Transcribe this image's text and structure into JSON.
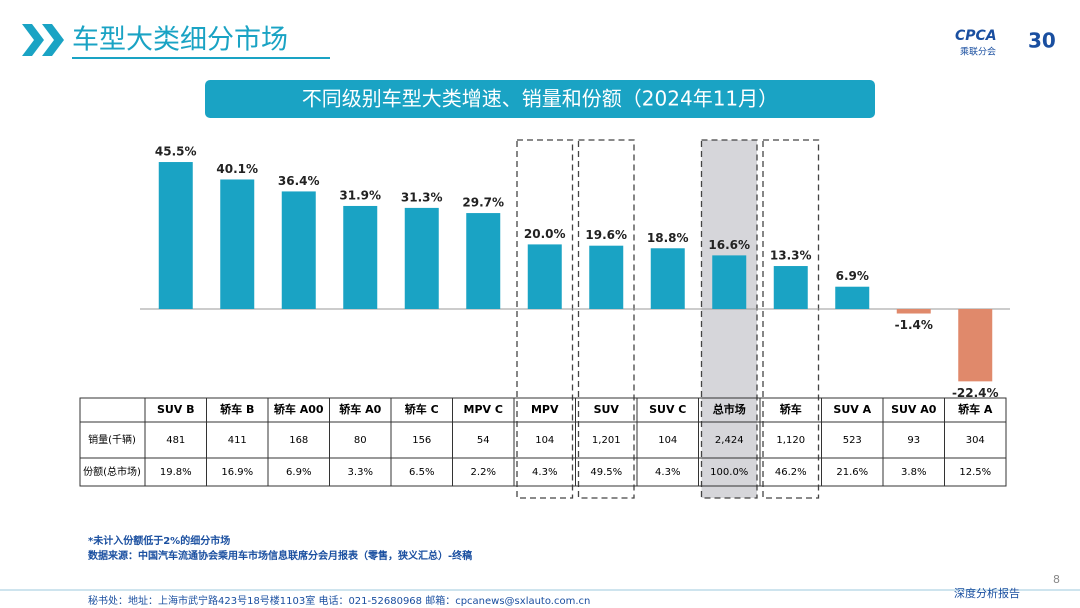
{
  "header": {
    "title": "车型大类细分市场",
    "logo": "CPCA",
    "logo_cn": "乘联分会",
    "anniversary": "30"
  },
  "chart_data": {
    "type": "bar",
    "title": "不同级别车型大类增速、销量和份额（2024年11月）",
    "categories": [
      "SUV B",
      "轿车 B",
      "轿车 A00",
      "轿车 A0",
      "轿车 C",
      "MPV C",
      "MPV",
      "SUV",
      "SUV C",
      "总市场",
      "轿车",
      "SUV A",
      "SUV A0",
      "轿车 A"
    ],
    "values": [
      45.5,
      40.1,
      36.4,
      31.9,
      31.3,
      29.7,
      20.0,
      19.6,
      18.8,
      16.6,
      13.3,
      6.9,
      -1.4,
      -22.4
    ],
    "value_labels": [
      "45.5%",
      "40.1%",
      "36.4%",
      "31.9%",
      "31.3%",
      "29.7%",
      "20.0%",
      "19.6%",
      "18.8%",
      "16.6%",
      "13.3%",
      "6.9%",
      "-1.4%",
      "-22.4%"
    ],
    "color": "#1aa3c4",
    "negative_color": "#e0896b"
  },
  "table": {
    "rows": [
      {
        "label": "销量(千辆)",
        "cells": [
          "481",
          "411",
          "168",
          "80",
          "156",
          "54",
          "104",
          "1,201",
          "104",
          "2,424",
          "1,120",
          "523",
          "93",
          "304"
        ]
      },
      {
        "label": "份额(总市场)",
        "cells": [
          "19.8%",
          "16.9%",
          "6.9%",
          "3.3%",
          "6.5%",
          "2.2%",
          "4.3%",
          "49.5%",
          "4.3%",
          "100.0%",
          "46.2%",
          "21.6%",
          "3.8%",
          "12.5%"
        ]
      }
    ]
  },
  "notes": [
    "*未计入份额低于2%的细分市场",
    "数据来源：中国汽车流通协会乘用车市场信息联席分会月报表（零售，狭义汇总）-终稿"
  ],
  "footer": {
    "contact": "秘书处：地址：上海市武宁路423号18号楼1103室 电话：021-52680968 邮箱：cpcanews@sxlauto.com.cn",
    "report": "深度分析报告",
    "page": "8"
  }
}
